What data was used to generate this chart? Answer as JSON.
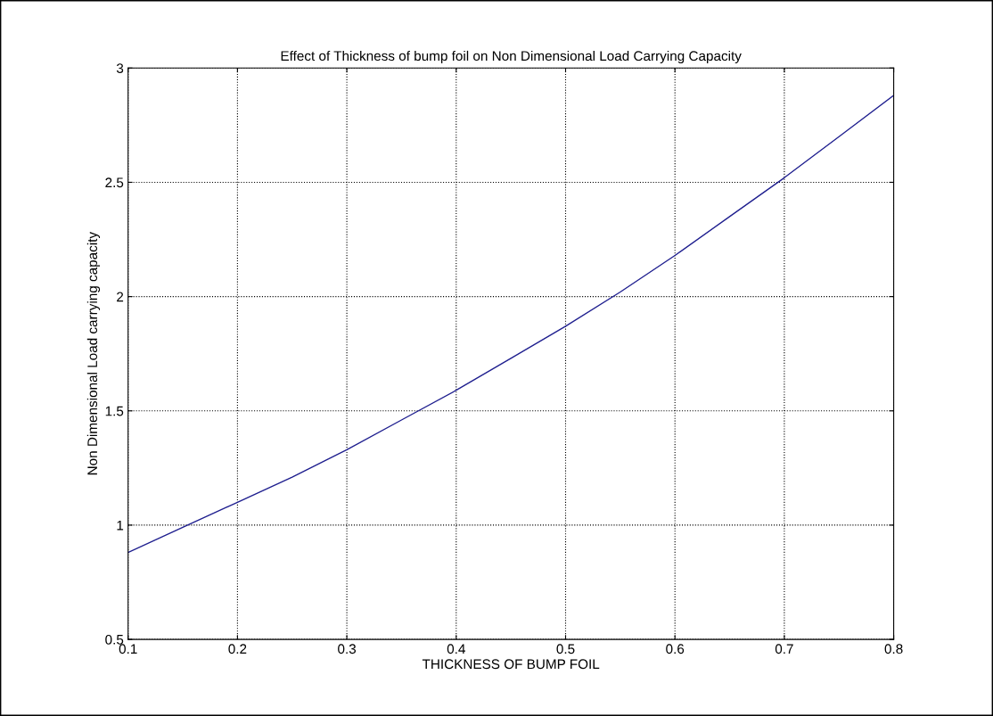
{
  "chart_data": {
    "type": "line",
    "title": "Effect of Thickness of bump foil on Non Dimensional Load Carrying Capacity",
    "xlabel": "THICKNESS OF BUMP FOIL",
    "ylabel": "Non Dimensional Load carrying capacity",
    "x": [
      0.1,
      0.15,
      0.2,
      0.25,
      0.3,
      0.35,
      0.4,
      0.45,
      0.5,
      0.55,
      0.6,
      0.65,
      0.7,
      0.75,
      0.8
    ],
    "series": [
      {
        "color": "#1f1f8f",
        "values": [
          0.88,
          0.99,
          1.1,
          1.21,
          1.33,
          1.46,
          1.59,
          1.73,
          1.87,
          2.02,
          2.18,
          2.35,
          2.52,
          2.7,
          2.88
        ]
      }
    ],
    "xlim": [
      0.1,
      0.8
    ],
    "xticks": [
      0.1,
      0.2,
      0.3,
      0.4,
      0.5,
      0.6,
      0.7,
      0.8
    ],
    "ylim": [
      0.5,
      3
    ],
    "yticks": [
      0.5,
      1,
      1.5,
      2,
      2.5,
      3
    ],
    "grid": true,
    "line_style": "solid",
    "marker": "none"
  }
}
